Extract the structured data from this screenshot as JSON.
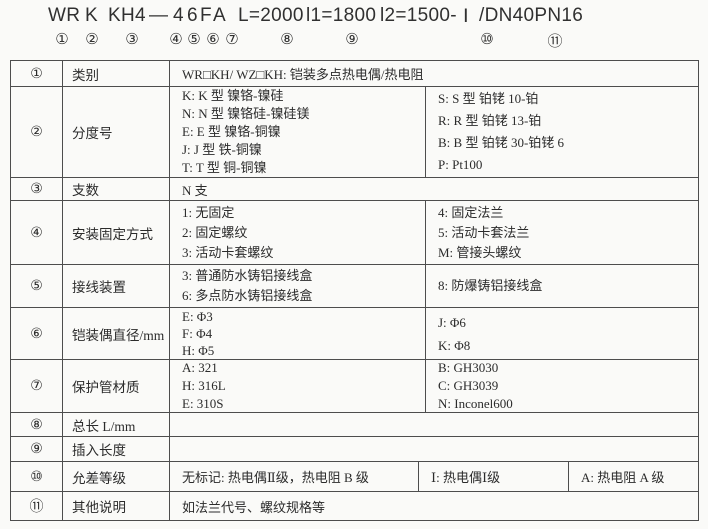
{
  "colors": {
    "background": "#fafaf8",
    "border": "#4d4d4d",
    "text": "#2b2b2b"
  },
  "model_code": {
    "segments": [
      "WR",
      "K",
      "KH4",
      "—",
      "4",
      "6",
      "F",
      "A",
      "L=2000",
      "l1=1800",
      "l2=1500-",
      "Ⅰ",
      "/DN40PN16"
    ],
    "markers": [
      "①",
      "②",
      "③",
      "④",
      "⑤",
      "⑥",
      "⑦",
      "⑧",
      "⑨",
      "⑩",
      "⑪"
    ]
  },
  "table": {
    "rows": [
      {
        "num": "①",
        "label": "类别",
        "cells": {
          "full": "WR□KH/ WZ□KH: 铠装多点热电偶/热电阻"
        }
      },
      {
        "num": "②",
        "label": "分度号",
        "cells": {
          "left": "K: K 型 镍铬-镍硅\nN: N 型 镍铬硅-镍硅镁\nE: E 型 镍铬-铜镍\nJ: J 型 铁-铜镍\nT: T 型 铜-铜镍",
          "right": "S: S 型 铂铑 10-铂\nR: R 型 铂铑 13-铂\nB: B 型 铂铑 30-铂铑 6\nP: Pt100"
        }
      },
      {
        "num": "③",
        "label": "支数",
        "cells": {
          "full": "N 支"
        }
      },
      {
        "num": "④",
        "label": "安装固定方式",
        "cells": {
          "left": "1: 无固定\n2: 固定螺纹\n3: 活动卡套螺纹",
          "right": "4: 固定法兰\n5: 活动卡套法兰\nM: 管接头螺纹"
        }
      },
      {
        "num": "⑤",
        "label": "接线装置",
        "cells": {
          "left": "3: 普通防水铸铝接线盒\n6: 多点防水铸铝接线盒",
          "right": "8: 防爆铸铝接线盒"
        }
      },
      {
        "num": "⑥",
        "label": "铠装偶直径/mm",
        "cells": {
          "left": "E: Φ3\nF: Φ4\nH: Φ5",
          "right": "J: Φ6\nK: Φ8"
        }
      },
      {
        "num": "⑦",
        "label": "保护管材质",
        "cells": {
          "left": "A: 321\nH: 316L\nE: 310S",
          "right": "B: GH3030\nC: GH3039\nN: Inconel600"
        }
      },
      {
        "num": "⑧",
        "label": "总长 L/mm",
        "cells": {
          "full": ""
        }
      },
      {
        "num": "⑨",
        "label": "插入长度",
        "cells": {
          "full": ""
        }
      },
      {
        "num": "⑩",
        "label": "允差等级",
        "cells": {
          "c1": "无标记: 热电偶Ⅱ级，热电阻 B 级",
          "c2": "Ⅰ: 热电偶Ⅰ级",
          "c3": "A: 热电阻 A 级"
        }
      },
      {
        "num": "⑪",
        "label": "其他说明",
        "cells": {
          "full": "如法兰代号、螺纹规格等"
        }
      }
    ]
  }
}
